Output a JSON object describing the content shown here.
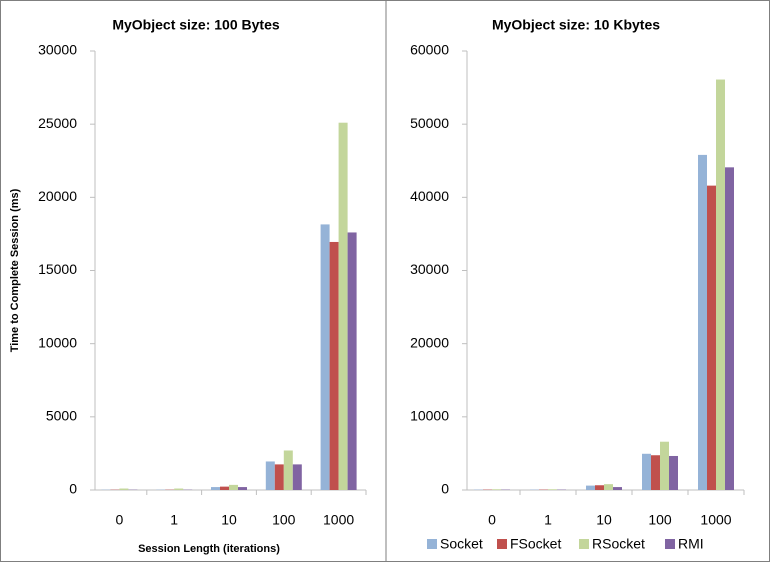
{
  "chart_data": [
    {
      "type": "bar",
      "title": "MyObject size:  100 Bytes",
      "y_label": "Time to Complete Session (ms)",
      "x_label": "Session Length (iterations)",
      "categories": [
        "0",
        "1",
        "10",
        "100",
        "1000"
      ],
      "series": [
        {
          "color": "#95b3d7",
          "values": [
            20,
            20,
            200,
            1950,
            18150
          ]
        },
        {
          "color": "#c0504d",
          "values": [
            20,
            20,
            230,
            1750,
            16950
          ]
        },
        {
          "color": "#c3d69b",
          "values": [
            100,
            100,
            350,
            2700,
            25100
          ]
        },
        {
          "color": "#8064a2",
          "values": [
            20,
            20,
            200,
            1750,
            17600
          ]
        }
      ],
      "ylim": [
        0,
        30000
      ],
      "yticks": [
        0,
        5000,
        10000,
        15000,
        20000,
        25000,
        30000
      ],
      "grid": false
    },
    {
      "type": "bar",
      "title": "MyObject size:  10 Kbytes",
      "categories": [
        "0",
        "1",
        "10",
        "100",
        "1000"
      ],
      "series": [
        {
          "name": "Socket",
          "color": "#95b3d7",
          "values": [
            50,
            50,
            600,
            4950,
            45800
          ]
        },
        {
          "name": "FSocket",
          "color": "#c0504d",
          "values": [
            50,
            50,
            650,
            4750,
            41600
          ]
        },
        {
          "name": "RSocket",
          "color": "#c3d69b",
          "values": [
            100,
            100,
            800,
            6600,
            56100
          ]
        },
        {
          "name": "RMI",
          "color": "#8064a2",
          "values": [
            50,
            50,
            400,
            4650,
            44100
          ]
        }
      ],
      "ylim": [
        0,
        60000
      ],
      "yticks": [
        0,
        10000,
        20000,
        30000,
        40000,
        50000,
        60000
      ],
      "grid": false,
      "legend": "bottom"
    }
  ]
}
